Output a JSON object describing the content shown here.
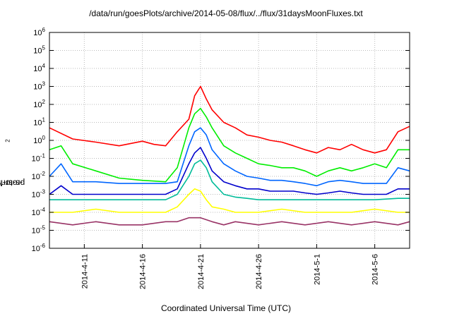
{
  "chart_data": {
    "type": "line",
    "title": "/data/run/goesPlots/archive/2014-05-08/flux/../flux/31daysMoonFluxes.txt",
    "xlabel": "Coordinated Universal Time (UTC)",
    "ylabel": "protons/cm²-s-sr-MeV",
    "ylabel_base": "protons/cm",
    "ylabel_sup": "2",
    "ylabel_rest": "-s-sr-MeV",
    "yscale": "log",
    "ylim": [
      1e-06,
      1000000.0
    ],
    "xlim": [
      "2014-04-08",
      "2014-05-09"
    ],
    "grid": true,
    "y_ticks": [
      {
        "base": "10",
        "exp": "-6"
      },
      {
        "base": "10",
        "exp": "-5"
      },
      {
        "base": "10",
        "exp": "-4"
      },
      {
        "base": "10",
        "exp": "-3"
      },
      {
        "base": "10",
        "exp": "-2"
      },
      {
        "base": "10",
        "exp": "-1"
      },
      {
        "base": "10",
        "exp": "0"
      },
      {
        "base": "10",
        "exp": "1"
      },
      {
        "base": "10",
        "exp": "2"
      },
      {
        "base": "10",
        "exp": "3"
      },
      {
        "base": "10",
        "exp": "4"
      },
      {
        "base": "10",
        "exp": "5"
      },
      {
        "base": "10",
        "exp": "6"
      }
    ],
    "x_ticks": [
      "2014-4-11",
      "2014-4-16",
      "2014-4-21",
      "2014-4-26",
      "2014-5-1",
      "2014-5-6"
    ],
    "x_tick_days": [
      3,
      8,
      13,
      18,
      23,
      28
    ],
    "series": [
      {
        "color": "#ff0000",
        "points": [
          [
            0,
            5
          ],
          [
            2,
            1.2
          ],
          [
            4,
            0.8
          ],
          [
            6,
            0.5
          ],
          [
            8,
            0.9
          ],
          [
            9,
            0.6
          ],
          [
            10,
            0.5
          ],
          [
            11,
            3
          ],
          [
            12,
            15
          ],
          [
            12.5,
            300
          ],
          [
            13,
            1000
          ],
          [
            13.5,
            200
          ],
          [
            14,
            50
          ],
          [
            15,
            10
          ],
          [
            16,
            5
          ],
          [
            17,
            2
          ],
          [
            18,
            1.5
          ],
          [
            19,
            1
          ],
          [
            20,
            0.8
          ],
          [
            21,
            0.5
          ],
          [
            22,
            0.3
          ],
          [
            23,
            0.2
          ],
          [
            24,
            0.4
          ],
          [
            25,
            0.3
          ],
          [
            26,
            0.6
          ],
          [
            27,
            0.3
          ],
          [
            28,
            0.2
          ],
          [
            29,
            0.3
          ],
          [
            30,
            3
          ],
          [
            31,
            6
          ]
        ]
      },
      {
        "color": "#00ee00",
        "points": [
          [
            0,
            0.3
          ],
          [
            1,
            0.5
          ],
          [
            2,
            0.05
          ],
          [
            4,
            0.02
          ],
          [
            6,
            0.008
          ],
          [
            8,
            0.006
          ],
          [
            10,
            0.005
          ],
          [
            11,
            0.03
          ],
          [
            12,
            5
          ],
          [
            12.5,
            30
          ],
          [
            13,
            60
          ],
          [
            13.5,
            20
          ],
          [
            14,
            5
          ],
          [
            15,
            0.5
          ],
          [
            16,
            0.2
          ],
          [
            17,
            0.1
          ],
          [
            18,
            0.05
          ],
          [
            19,
            0.04
          ],
          [
            20,
            0.03
          ],
          [
            21,
            0.03
          ],
          [
            22,
            0.02
          ],
          [
            23,
            0.01
          ],
          [
            24,
            0.02
          ],
          [
            25,
            0.03
          ],
          [
            26,
            0.02
          ],
          [
            27,
            0.03
          ],
          [
            28,
            0.05
          ],
          [
            29,
            0.03
          ],
          [
            30,
            0.3
          ],
          [
            31,
            0.3
          ]
        ]
      },
      {
        "color": "#0066ff",
        "points": [
          [
            0,
            0.01
          ],
          [
            1,
            0.05
          ],
          [
            2,
            0.005
          ],
          [
            4,
            0.005
          ],
          [
            6,
            0.004
          ],
          [
            8,
            0.004
          ],
          [
            10,
            0.004
          ],
          [
            11,
            0.005
          ],
          [
            12,
            0.5
          ],
          [
            12.5,
            3
          ],
          [
            13,
            5
          ],
          [
            13.5,
            2
          ],
          [
            14,
            0.3
          ],
          [
            15,
            0.05
          ],
          [
            16,
            0.02
          ],
          [
            17,
            0.01
          ],
          [
            18,
            0.008
          ],
          [
            19,
            0.006
          ],
          [
            20,
            0.006
          ],
          [
            21,
            0.005
          ],
          [
            22,
            0.004
          ],
          [
            23,
            0.003
          ],
          [
            24,
            0.005
          ],
          [
            25,
            0.006
          ],
          [
            26,
            0.005
          ],
          [
            27,
            0.004
          ],
          [
            28,
            0.004
          ],
          [
            29,
            0.004
          ],
          [
            30,
            0.03
          ],
          [
            31,
            0.02
          ]
        ]
      },
      {
        "color": "#0000cc",
        "points": [
          [
            0,
            0.001
          ],
          [
            1,
            0.003
          ],
          [
            2,
            0.001
          ],
          [
            4,
            0.001
          ],
          [
            6,
            0.001
          ],
          [
            8,
            0.001
          ],
          [
            10,
            0.001
          ],
          [
            11,
            0.002
          ],
          [
            12,
            0.05
          ],
          [
            12.5,
            0.2
          ],
          [
            13,
            0.4
          ],
          [
            13.5,
            0.1
          ],
          [
            14,
            0.02
          ],
          [
            15,
            0.005
          ],
          [
            16,
            0.003
          ],
          [
            17,
            0.002
          ],
          [
            18,
            0.002
          ],
          [
            19,
            0.0015
          ],
          [
            20,
            0.0015
          ],
          [
            21,
            0.0015
          ],
          [
            22,
            0.0012
          ],
          [
            23,
            0.001
          ],
          [
            24,
            0.0012
          ],
          [
            25,
            0.0015
          ],
          [
            26,
            0.0012
          ],
          [
            27,
            0.001
          ],
          [
            28,
            0.001
          ],
          [
            29,
            0.001
          ],
          [
            30,
            0.002
          ],
          [
            31,
            0.002
          ]
        ]
      },
      {
        "color": "#00bb99",
        "points": [
          [
            0,
            0.0005
          ],
          [
            2,
            0.0005
          ],
          [
            4,
            0.0005
          ],
          [
            6,
            0.0005
          ],
          [
            8,
            0.0005
          ],
          [
            10,
            0.0005
          ],
          [
            11,
            0.001
          ],
          [
            12,
            0.01
          ],
          [
            12.5,
            0.05
          ],
          [
            13,
            0.08
          ],
          [
            13.5,
            0.03
          ],
          [
            14,
            0.005
          ],
          [
            15,
            0.001
          ],
          [
            16,
            0.0007
          ],
          [
            17,
            0.0006
          ],
          [
            18,
            0.0005
          ],
          [
            20,
            0.0005
          ],
          [
            22,
            0.0005
          ],
          [
            24,
            0.0005
          ],
          [
            26,
            0.0005
          ],
          [
            28,
            0.0005
          ],
          [
            30,
            0.0006
          ],
          [
            31,
            0.0006
          ]
        ]
      },
      {
        "color": "#ffff00",
        "points": [
          [
            0,
            0.0001
          ],
          [
            2,
            0.0001
          ],
          [
            4,
            0.00015
          ],
          [
            6,
            0.0001
          ],
          [
            8,
            0.0001
          ],
          [
            10,
            0.0001
          ],
          [
            11,
            0.0002
          ],
          [
            12,
            0.001
          ],
          [
            12.5,
            0.002
          ],
          [
            13,
            0.0015
          ],
          [
            13.5,
            0.0005
          ],
          [
            14,
            0.0002
          ],
          [
            15,
            0.00015
          ],
          [
            16,
            0.0001
          ],
          [
            18,
            0.0001
          ],
          [
            20,
            0.00015
          ],
          [
            22,
            0.0001
          ],
          [
            24,
            0.0001
          ],
          [
            26,
            0.0001
          ],
          [
            28,
            0.00015
          ],
          [
            30,
            0.0001
          ],
          [
            31,
            0.0001
          ]
        ]
      },
      {
        "color": "#993366",
        "points": [
          [
            0,
            3e-05
          ],
          [
            2,
            2e-05
          ],
          [
            4,
            3e-05
          ],
          [
            6,
            2e-05
          ],
          [
            8,
            2e-05
          ],
          [
            10,
            3e-05
          ],
          [
            11,
            3e-05
          ],
          [
            12,
            5e-05
          ],
          [
            13,
            5e-05
          ],
          [
            14,
            3e-05
          ],
          [
            15,
            2e-05
          ],
          [
            16,
            3e-05
          ],
          [
            18,
            2e-05
          ],
          [
            20,
            3e-05
          ],
          [
            22,
            2e-05
          ],
          [
            24,
            3e-05
          ],
          [
            26,
            2e-05
          ],
          [
            28,
            3e-05
          ],
          [
            30,
            2e-05
          ],
          [
            31,
            3e-05
          ]
        ]
      }
    ]
  }
}
